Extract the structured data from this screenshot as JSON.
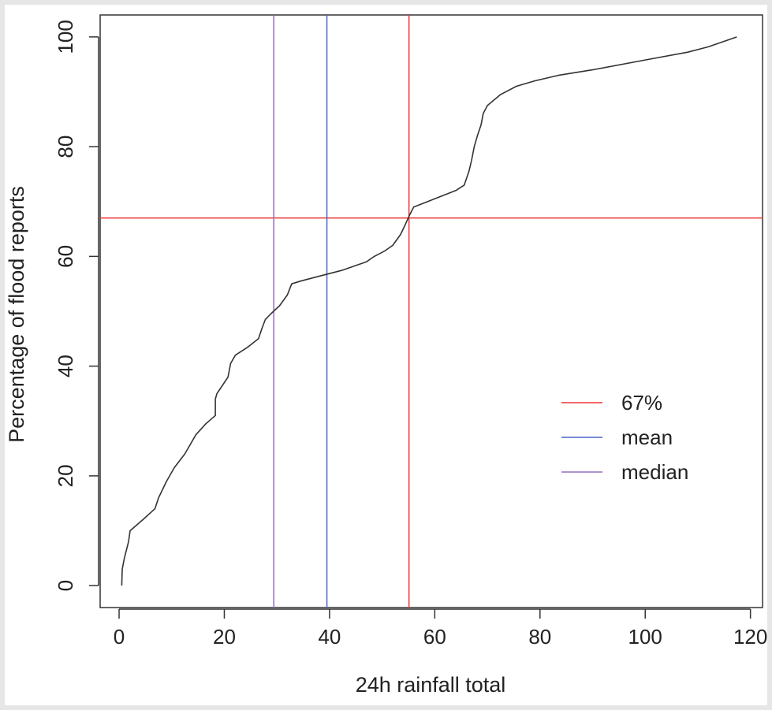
{
  "chart_data": {
    "type": "line",
    "title": "",
    "xlabel": "24h rainfall total",
    "ylabel": "Percentage of flood reports",
    "xlim": [
      -3.6,
      122.3
    ],
    "ylim": [
      -4,
      104
    ],
    "x_ticks": [
      0,
      20,
      40,
      60,
      80,
      100,
      120
    ],
    "y_ticks": [
      0,
      20,
      40,
      60,
      80,
      100
    ],
    "grid": false,
    "legend_position": "right",
    "series": [
      {
        "color": "#333333",
        "x": [
          0.5,
          0.6,
          1.0,
          1.8,
          2.1,
          4.5,
          6.8,
          7.5,
          9.0,
          10.5,
          12.5,
          13.7,
          14.6,
          16.5,
          18.3,
          18.3,
          18.6,
          20.0,
          20.7,
          21.2,
          22.1,
          24.5,
          26.5,
          27.2,
          27.8,
          28.8,
          30.5,
          32.0,
          32.8,
          34.5,
          36.5,
          38.5,
          42.5,
          47.0,
          48.5,
          50.5,
          52.0,
          53.5,
          54.5,
          55.2,
          56.0,
          60.0,
          64.0,
          65.6,
          66.5,
          67.0,
          67.5,
          68.1,
          68.8,
          69.2,
          70.0,
          72.5,
          75.5,
          79.0,
          83.5,
          90.0,
          100.0,
          108.0,
          112.0,
          117.4
        ],
        "y": [
          0,
          3,
          5,
          8,
          10,
          12,
          14,
          16,
          19,
          21.5,
          24,
          26,
          27.5,
          29.5,
          31,
          34,
          35,
          37,
          38,
          40.5,
          42,
          43.5,
          45,
          47,
          48.5,
          49.5,
          51,
          53,
          55,
          55.5,
          56,
          56.5,
          57.5,
          59,
          60,
          61,
          62,
          64,
          66,
          67.5,
          69,
          70.5,
          72,
          73,
          75.5,
          77.5,
          80,
          82,
          84,
          86,
          87.5,
          89.5,
          91,
          92,
          93,
          94,
          95.8,
          97.2,
          98.2,
          100
        ]
      }
    ],
    "reference_lines": [
      {
        "orientation": "horizontal",
        "value": 67,
        "color": "#ee3333"
      },
      {
        "orientation": "vertical",
        "value": 55.1,
        "color": "#ee3333"
      },
      {
        "orientation": "vertical",
        "value": 39.5,
        "color": "#4a66c8"
      },
      {
        "orientation": "vertical",
        "value": 29.4,
        "color": "#9070c0"
      }
    ],
    "legend": [
      {
        "label": "67%",
        "color": "#ee3333"
      },
      {
        "label": "mean",
        "color": "#4a66c8"
      },
      {
        "label": "median",
        "color": "#9070c0"
      }
    ]
  }
}
